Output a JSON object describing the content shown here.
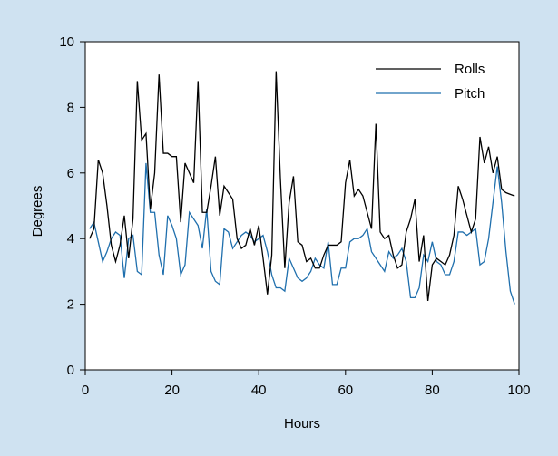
{
  "chart_data": {
    "type": "line",
    "title": "",
    "xlabel": "Hours",
    "ylabel": "Degrees",
    "xlim": [
      0,
      100
    ],
    "ylim": [
      0,
      10
    ],
    "xticks": [
      0,
      20,
      40,
      60,
      80,
      100
    ],
    "yticks": [
      0,
      2,
      4,
      6,
      8,
      10
    ],
    "grid": false,
    "legend_position": "top-right",
    "series": [
      {
        "name": "Rolls",
        "color": "#000000",
        "x": [
          1,
          2,
          3,
          4,
          5,
          6,
          7,
          8,
          9,
          10,
          11,
          12,
          13,
          14,
          15,
          16,
          17,
          18,
          19,
          20,
          21,
          22,
          23,
          24,
          25,
          26,
          27,
          28,
          29,
          30,
          31,
          32,
          33,
          34,
          35,
          36,
          37,
          38,
          39,
          40,
          41,
          42,
          43,
          44,
          45,
          46,
          47,
          48,
          49,
          50,
          51,
          52,
          53,
          54,
          55,
          56,
          57,
          58,
          59,
          60,
          61,
          62,
          63,
          64,
          65,
          66,
          67,
          68,
          69,
          70,
          71,
          72,
          73,
          74,
          75,
          76,
          77,
          78,
          79,
          80,
          81,
          82,
          83,
          84,
          85,
          86,
          87,
          88,
          89,
          90,
          91,
          92,
          93,
          94,
          95,
          96,
          97,
          98,
          99
        ],
        "values": [
          4.0,
          4.3,
          6.4,
          6.0,
          5.0,
          3.8,
          3.3,
          3.8,
          4.7,
          3.4,
          4.6,
          8.8,
          7.0,
          7.2,
          4.9,
          6.0,
          9.0,
          6.6,
          6.6,
          6.5,
          6.5,
          4.5,
          6.3,
          6.0,
          5.7,
          8.8,
          4.8,
          4.8,
          5.6,
          6.5,
          4.7,
          5.6,
          5.4,
          5.2,
          4.0,
          3.7,
          3.8,
          4.3,
          3.8,
          4.4,
          3.4,
          2.3,
          3.5,
          9.1,
          5.8,
          3.1,
          5.1,
          5.9,
          3.9,
          3.8,
          3.3,
          3.4,
          3.1,
          3.1,
          3.5,
          3.8,
          3.8,
          3.8,
          3.9,
          5.7,
          6.4,
          5.3,
          5.5,
          5.3,
          4.8,
          4.3,
          7.5,
          4.2,
          4.0,
          4.1,
          3.5,
          3.1,
          3.2,
          4.2,
          4.6,
          5.2,
          3.3,
          4.1,
          2.1,
          3.2,
          3.4,
          3.3,
          3.2,
          3.5,
          4.1,
          5.6,
          5.2,
          4.7,
          4.2,
          4.6,
          7.1,
          6.3,
          6.8,
          6.0,
          6.5,
          5.5,
          5.4,
          5.35,
          5.3
        ]
      },
      {
        "name": "Pitch",
        "color": "#1f6fad",
        "x": [
          1,
          2,
          3,
          4,
          5,
          6,
          7,
          8,
          9,
          10,
          11,
          12,
          13,
          14,
          15,
          16,
          17,
          18,
          19,
          20,
          21,
          22,
          23,
          24,
          25,
          26,
          27,
          28,
          29,
          30,
          31,
          32,
          33,
          34,
          35,
          36,
          37,
          38,
          39,
          40,
          41,
          42,
          43,
          44,
          45,
          46,
          47,
          48,
          49,
          50,
          51,
          52,
          53,
          54,
          55,
          56,
          57,
          58,
          59,
          60,
          61,
          62,
          63,
          64,
          65,
          66,
          67,
          68,
          69,
          70,
          71,
          72,
          73,
          74,
          75,
          76,
          77,
          78,
          79,
          80,
          81,
          82,
          83,
          84,
          85,
          86,
          87,
          88,
          89,
          90,
          91,
          92,
          93,
          94,
          95,
          96,
          97,
          98,
          99
        ],
        "values": [
          4.3,
          4.5,
          3.9,
          3.3,
          3.6,
          4.0,
          4.2,
          4.1,
          2.8,
          4.0,
          4.1,
          3.0,
          2.9,
          6.3,
          4.8,
          4.8,
          3.5,
          2.9,
          4.7,
          4.4,
          4.0,
          2.9,
          3.2,
          4.8,
          4.6,
          4.4,
          3.7,
          4.9,
          3.0,
          2.7,
          2.6,
          4.3,
          4.2,
          3.7,
          3.9,
          4.1,
          4.2,
          4.1,
          3.9,
          4.0,
          4.1,
          3.6,
          2.9,
          2.5,
          2.5,
          2.4,
          3.4,
          3.1,
          2.8,
          2.7,
          2.8,
          3.0,
          3.4,
          3.2,
          3.1,
          3.9,
          2.6,
          2.6,
          3.1,
          3.1,
          3.9,
          4.0,
          4.0,
          4.1,
          4.3,
          3.6,
          3.4,
          3.2,
          3.0,
          3.6,
          3.4,
          3.5,
          3.7,
          3.3,
          2.2,
          2.2,
          2.5,
          3.5,
          3.3,
          3.9,
          3.3,
          3.2,
          2.9,
          2.9,
          3.3,
          4.2,
          4.2,
          4.1,
          4.2,
          4.3,
          3.2,
          3.3,
          4.0,
          5.1,
          6.2,
          5.1,
          3.6,
          2.4,
          2.0
        ]
      }
    ]
  }
}
